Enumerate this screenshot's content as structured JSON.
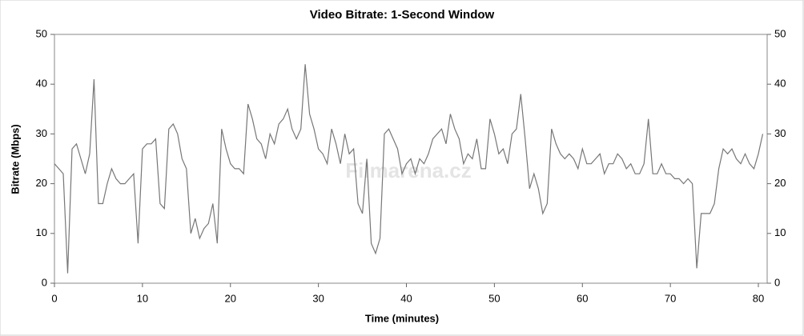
{
  "chart_data": {
    "type": "line",
    "title": "Video Bitrate: 1-Second Window",
    "x_label": "Time (minutes)",
    "y_label": "Bitrate (Mbps)",
    "watermark": "Filmarena.cz",
    "xlim": [
      0,
      81
    ],
    "ylim": [
      0,
      50
    ],
    "xticks": [
      0,
      10,
      20,
      30,
      40,
      50,
      60,
      70,
      80
    ],
    "yticks": [
      0,
      10,
      20,
      30,
      40,
      50
    ],
    "x": [
      0,
      0.5,
      1,
      1.5,
      2,
      2.5,
      3,
      3.5,
      4,
      4.5,
      5,
      5.5,
      6,
      6.5,
      7,
      7.5,
      8,
      8.5,
      9,
      9.5,
      10,
      10.5,
      11,
      11.5,
      12,
      12.5,
      13,
      13.5,
      14,
      14.5,
      15,
      15.5,
      16,
      16.5,
      17,
      17.5,
      18,
      18.5,
      19,
      19.5,
      20,
      20.5,
      21,
      21.5,
      22,
      22.5,
      23,
      23.5,
      24,
      24.5,
      25,
      25.5,
      26,
      26.5,
      27,
      27.5,
      28,
      28.5,
      29,
      29.5,
      30,
      30.5,
      31,
      31.5,
      32,
      32.5,
      33,
      33.5,
      34,
      34.5,
      35,
      35.5,
      36,
      36.5,
      37,
      37.5,
      38,
      38.5,
      39,
      39.5,
      40,
      40.5,
      41,
      41.5,
      42,
      42.5,
      43,
      43.5,
      44,
      44.5,
      45,
      45.5,
      46,
      46.5,
      47,
      47.5,
      48,
      48.5,
      49,
      49.5,
      50,
      50.5,
      51,
      51.5,
      52,
      52.5,
      53,
      53.5,
      54,
      54.5,
      55,
      55.5,
      56,
      56.5,
      57,
      57.5,
      58,
      58.5,
      59,
      59.5,
      60,
      60.5,
      61,
      61.5,
      62,
      62.5,
      63,
      63.5,
      64,
      64.5,
      65,
      65.5,
      66,
      66.5,
      67,
      67.5,
      68,
      68.5,
      69,
      69.5,
      70,
      70.5,
      71,
      71.5,
      72,
      72.5,
      73,
      73.5,
      74,
      74.5,
      75,
      75.5,
      76,
      76.5,
      77,
      77.5,
      78,
      78.5,
      79,
      79.5,
      80,
      80.5
    ],
    "series": [
      {
        "color": "#777777",
        "values": [
          24,
          23,
          22,
          2,
          27,
          28,
          25,
          22,
          26,
          41,
          16,
          16,
          20,
          23,
          21,
          20,
          20,
          21,
          22,
          8,
          27,
          28,
          28,
          29,
          16,
          15,
          31,
          32,
          30,
          25,
          23,
          10,
          13,
          9,
          11,
          12,
          16,
          8,
          31,
          27,
          24,
          23,
          23,
          22,
          36,
          33,
          29,
          28,
          25,
          30,
          28,
          32,
          33,
          35,
          31,
          29,
          31,
          44,
          34,
          31,
          27,
          26,
          24,
          31,
          28,
          24,
          30,
          26,
          27,
          16,
          14,
          25,
          8,
          6,
          9,
          30,
          31,
          29,
          27,
          22,
          24,
          25,
          22,
          25,
          24,
          26,
          29,
          30,
          31,
          28,
          34,
          31,
          29,
          24,
          26,
          25,
          29,
          23,
          23,
          33,
          30,
          26,
          27,
          24,
          30,
          31,
          38,
          29,
          19,
          22,
          19,
          14,
          16,
          31,
          28,
          26,
          25,
          26,
          25,
          23,
          27,
          24,
          24,
          25,
          26,
          22,
          24,
          24,
          26,
          25,
          23,
          24,
          22,
          22,
          24,
          33,
          22,
          22,
          24,
          22,
          22,
          21,
          21,
          20,
          21,
          20,
          3,
          14,
          14,
          14,
          16,
          23,
          27,
          26,
          27,
          25,
          24,
          26,
          24,
          23,
          26,
          30
        ]
      }
    ]
  }
}
